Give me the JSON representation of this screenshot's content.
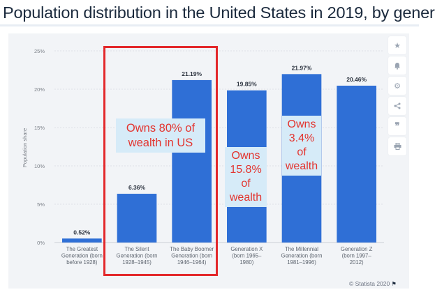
{
  "title": "Population distribution in the United States in 2019, by gener",
  "chart_data": {
    "type": "bar",
    "categories": [
      [
        "The Greatest",
        "Generation (born",
        "before 1928)"
      ],
      [
        "The Silent",
        "Generation (born",
        "1928–1945)"
      ],
      [
        "The Baby Boomer",
        "Generation (born",
        "1946–1964)"
      ],
      [
        "Generation X",
        "(born 1965–",
        "1980)"
      ],
      [
        "The Millennial",
        "Generation (born",
        "1981–1996)"
      ],
      [
        "Generation Z",
        "(born 1997–",
        "2012)"
      ]
    ],
    "values": [
      0.52,
      6.36,
      21.19,
      19.85,
      21.97,
      20.46
    ],
    "data_labels": [
      "0.52%",
      "6.36%",
      "21.19%",
      "19.85%",
      "21.97%",
      "20.46%"
    ],
    "ylabel": "Population share",
    "ylim": [
      0,
      25
    ],
    "yticks": [
      0,
      5,
      10,
      15,
      20,
      25
    ],
    "ytick_labels": [
      "0%",
      "5%",
      "10%",
      "15%",
      "20%",
      "25%"
    ],
    "grid": true,
    "bar_color": "#2f6fd6"
  },
  "annotations": {
    "boomer_silent": [
      "Owns 80% of",
      "wealth in US"
    ],
    "genx": [
      "Owns",
      "15.8%",
      "of",
      "wealth"
    ],
    "millennial": [
      "Owns",
      "3.4%",
      "of",
      "wealth"
    ],
    "highlight_color": "#e3282b",
    "text_color": "#e3342f"
  },
  "sidebar": {
    "icons": [
      "star-icon",
      "bell-icon",
      "gear-icon",
      "share-icon",
      "quote-icon",
      "print-icon"
    ]
  },
  "credit": {
    "text": "© Statista 2020"
  }
}
